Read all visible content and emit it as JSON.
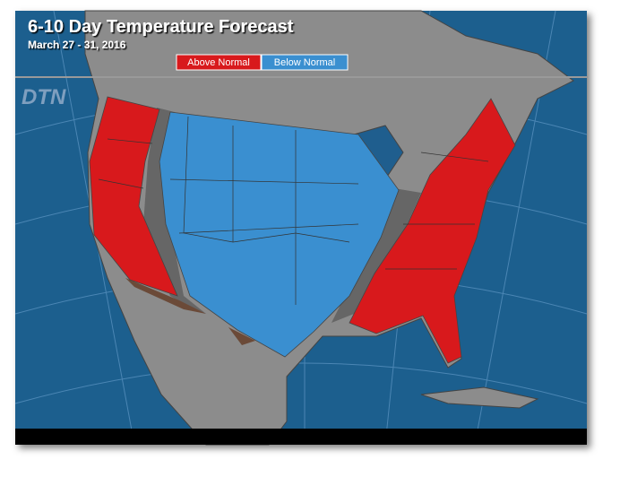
{
  "header": {
    "title": "6-10 Day Temperature Forecast",
    "subtitle": "March 27 - 31, 2016"
  },
  "legend": {
    "items": [
      "Above Normal",
      "Below Normal"
    ]
  },
  "logo": "DTN"
}
